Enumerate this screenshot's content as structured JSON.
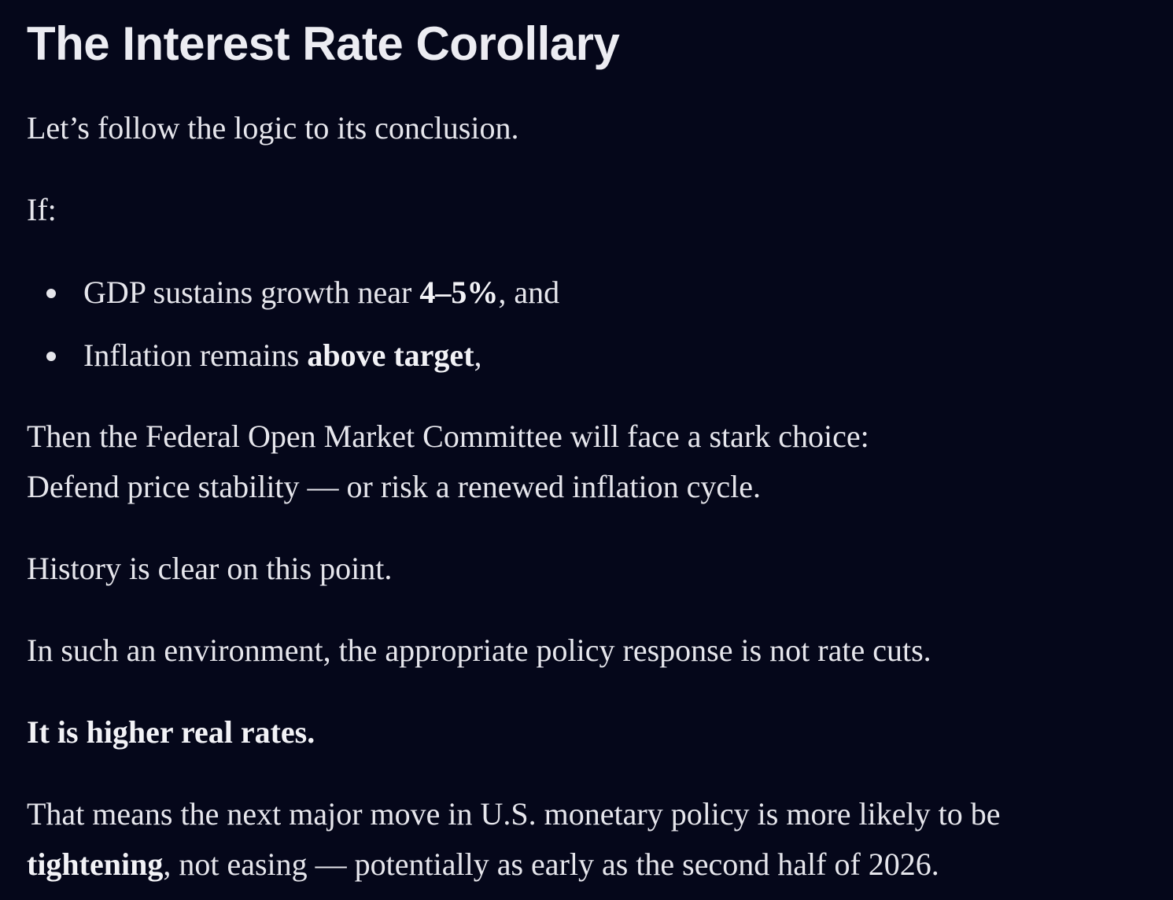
{
  "title": "The Interest Rate Corollary",
  "intro": "Let’s follow the logic to its conclusion.",
  "if_label": "If:",
  "bullets": [
    {
      "pre": "GDP sustains growth near ",
      "bold": "4–5%",
      "post": ", and"
    },
    {
      "pre": "Inflation remains ",
      "bold": "above target",
      "post": ","
    }
  ],
  "choice": {
    "line1": "Then the Federal Open Market Committee will face a stark choice:",
    "line2": "Defend price stability — or risk a renewed inflation cycle."
  },
  "history": "History is clear on this point.",
  "environment": "In such an environment, the appropriate policy response is not rate cuts.",
  "emphasis": "It is higher real rates.",
  "conclusion": {
    "line1": "That means the next major move in U.S. monetary policy is more likely to be",
    "bold": "tightening",
    "line2_rest": ", not easing — potentially as early as the second half of 2026."
  }
}
